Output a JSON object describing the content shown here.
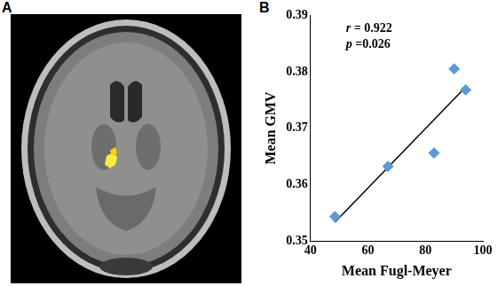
{
  "panel_labels": [
    "A",
    "B"
  ],
  "chart_data": {
    "type": "scatter",
    "x_label": "Mean Fugl-Meyer",
    "y_label": "Mean GMV",
    "annotations": [
      "r = 0.922",
      "p =0.026"
    ],
    "xlim": [
      40,
      100
    ],
    "xticks": [
      40,
      60,
      80,
      100
    ],
    "ylim": [
      0.35,
      0.39
    ],
    "yticks": [
      0.35,
      0.36,
      0.37,
      0.38,
      0.39
    ],
    "grid": false,
    "series": [
      {
        "type": "scatter",
        "color": "#5b9bd5",
        "marker": "diamond",
        "x": [
          48.5,
          67,
          83,
          90,
          94
        ],
        "values": [
          0.3543,
          0.3632,
          0.3656,
          0.3805,
          0.3768
        ]
      },
      {
        "type": "line",
        "color": "#000000",
        "line_style": "solid",
        "x": [
          48.5,
          94
        ],
        "values": [
          0.3533,
          0.3773
        ]
      }
    ]
  }
}
